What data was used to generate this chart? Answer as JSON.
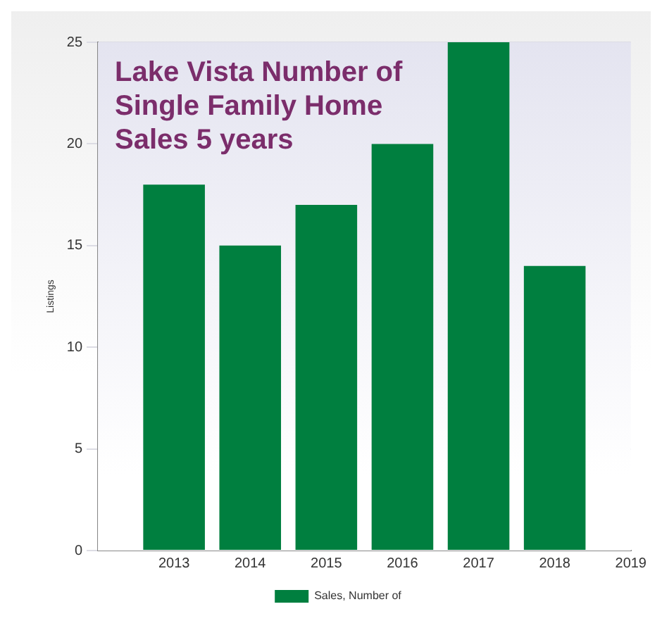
{
  "chart_data": {
    "type": "bar",
    "title": "Lake Vista Number of Single Family Home Sales 5 years",
    "ylabel": "Listings",
    "x": [
      2013,
      2014,
      2015,
      2016,
      2017,
      2018
    ],
    "series": [
      {
        "name": "Sales, Number of",
        "color": "#007f3f",
        "values": [
          18,
          15,
          17,
          20,
          25,
          14
        ]
      }
    ],
    "xlim": [
      2012,
      2019
    ],
    "xticks": [
      2013,
      2014,
      2015,
      2016,
      2017,
      2018,
      2019
    ],
    "ylim": [
      0,
      25
    ],
    "yticks": [
      0,
      5,
      10,
      15,
      20,
      25
    ],
    "grid": true,
    "legend": "bottom"
  }
}
